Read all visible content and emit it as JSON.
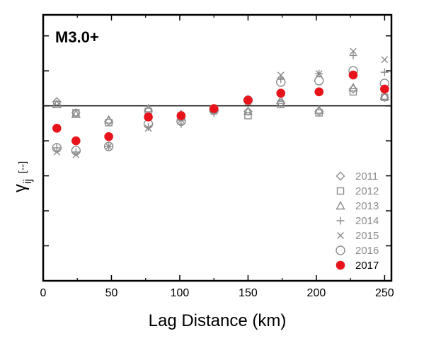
{
  "chart_data": {
    "type": "scatter",
    "panel_label": "M3.0+",
    "xlabel": "Lag Distance (km)",
    "ylabel_symbol": "γ",
    "ylabel_subscript": "ij",
    "ylabel_unit": "[--]",
    "xlim": [
      0,
      255
    ],
    "ylim": [
      -1.25,
      0.65
    ],
    "x_ticks": [
      0,
      50,
      100,
      150,
      200,
      250
    ],
    "x_tick_labels": [
      "0",
      "50",
      "100",
      "150",
      "200",
      "250"
    ],
    "y_ticks": [
      -1.25,
      -1.0,
      -0.75,
      -0.5,
      -0.25,
      0.0,
      0.25,
      0.5
    ],
    "y_tick_labels": [
      "",
      "",
      "",
      "",
      "",
      "",
      "",
      ""
    ],
    "reference_line_y": 0,
    "legend_position": "bottom-right",
    "x": [
      10,
      24,
      48,
      77,
      101,
      125,
      150,
      174,
      202,
      227,
      250
    ],
    "series": [
      {
        "name": "2011",
        "marker": "diamond",
        "color": "#8c8c8c",
        "values": [
          0.03,
          -0.05,
          -0.11,
          -0.03,
          -0.07,
          -0.03,
          -0.04,
          0.02,
          -0.04,
          0.12,
          0.06
        ]
      },
      {
        "name": "2012",
        "marker": "square",
        "color": "#8c8c8c",
        "values": [
          0.01,
          -0.05,
          -0.12,
          -0.04,
          -0.08,
          -0.02,
          -0.07,
          0.01,
          -0.05,
          0.1,
          0.06
        ]
      },
      {
        "name": "2013",
        "marker": "triangle",
        "color": "#8c8c8c",
        "values": [
          0.01,
          -0.06,
          -0.1,
          -0.02,
          -0.06,
          -0.02,
          -0.04,
          0.04,
          -0.03,
          0.13,
          0.07
        ]
      },
      {
        "name": "2014",
        "marker": "plus",
        "color": "#8c8c8c",
        "values": [
          -0.3,
          -0.33,
          -0.29,
          -0.15,
          -0.13,
          -0.05,
          0.05,
          0.19,
          0.23,
          0.36,
          0.24
        ]
      },
      {
        "name": "2015",
        "marker": "cross",
        "color": "#8c8c8c",
        "values": [
          -0.33,
          -0.35,
          -0.29,
          -0.16,
          -0.1,
          -0.04,
          0.03,
          0.22,
          0.23,
          0.39,
          0.33
        ]
      },
      {
        "name": "2016",
        "marker": "circle",
        "color": "#8c8c8c",
        "values": [
          -0.3,
          -0.32,
          -0.29,
          -0.13,
          -0.11,
          -0.03,
          0.04,
          0.17,
          0.18,
          0.25,
          0.16
        ]
      },
      {
        "name": "2017",
        "marker": "filled-circle",
        "color": "#e8141c",
        "values": [
          -0.16,
          -0.25,
          -0.22,
          -0.08,
          -0.07,
          -0.02,
          0.04,
          0.09,
          0.1,
          0.22,
          0.12
        ]
      }
    ]
  }
}
